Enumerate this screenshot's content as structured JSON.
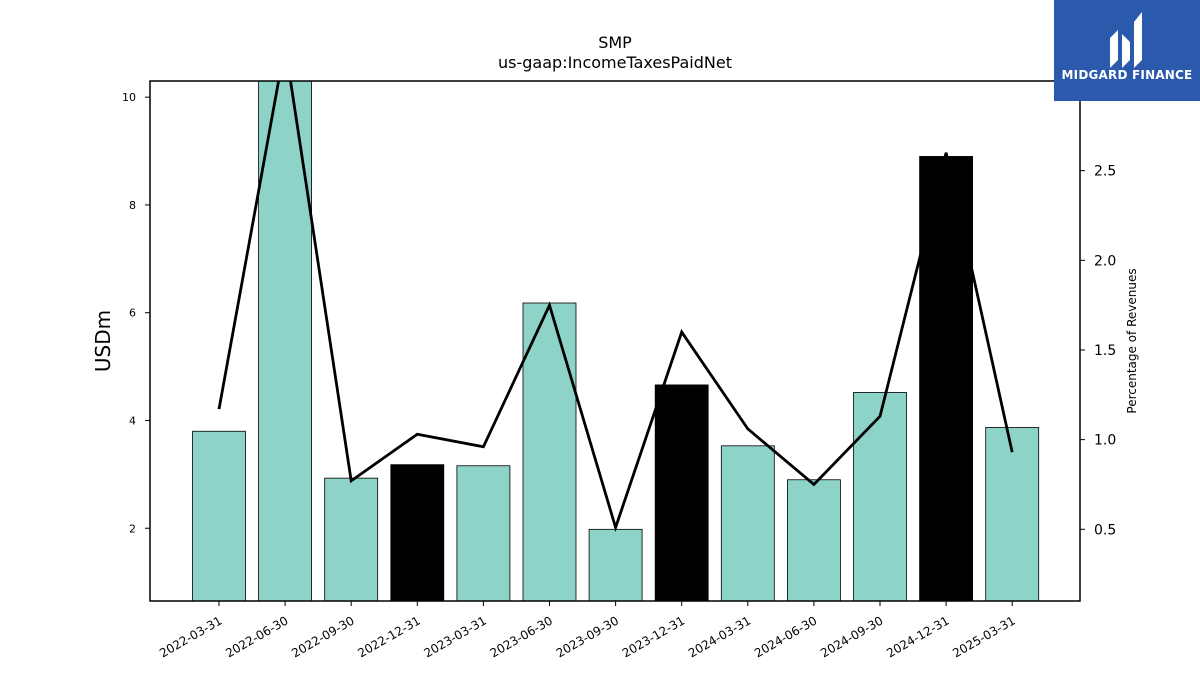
{
  "chart_data": {
    "type": "bar",
    "title": "SMP",
    "subtitle": "us-gaap:IncomeTaxesPaidNet",
    "ylabel": "USDm",
    "y2label": "Percentage of Revenues",
    "categories": [
      "2022-03-31",
      "2022-06-30",
      "2022-09-30",
      "2022-12-31",
      "2023-03-31",
      "2023-06-30",
      "2023-09-30",
      "2023-12-31",
      "2024-03-31",
      "2024-06-30",
      "2024-09-30",
      "2024-12-31",
      "2025-03-31"
    ],
    "values": [
      3.8,
      10.4,
      2.93,
      3.18,
      3.16,
      6.18,
      1.98,
      4.66,
      3.53,
      2.9,
      4.52,
      8.9,
      3.87
    ],
    "highlighted": [
      false,
      false,
      false,
      true,
      false,
      false,
      false,
      true,
      false,
      false,
      false,
      true,
      false
    ],
    "line_series": {
      "name": "Percentage of Revenues",
      "values": [
        1.17,
        3.2,
        0.77,
        1.03,
        0.96,
        1.75,
        0.51,
        1.6,
        1.06,
        0.75,
        1.13,
        2.6,
        0.93
      ]
    },
    "ylim": [
      0.65,
      10.3
    ],
    "y_ticks": [
      2,
      4,
      6,
      8,
      10
    ],
    "y2lim": [
      0.1,
      3.0
    ],
    "y2_ticks": [
      "0.5",
      "1.0",
      "1.5",
      "2.0",
      "2.5"
    ],
    "bar_color": "#8dd3c7",
    "highlight_color": "#000000",
    "line_color": "#000000"
  },
  "logo": {
    "text": "MIDGARD FINANCE",
    "bg": "#2b59ac"
  }
}
